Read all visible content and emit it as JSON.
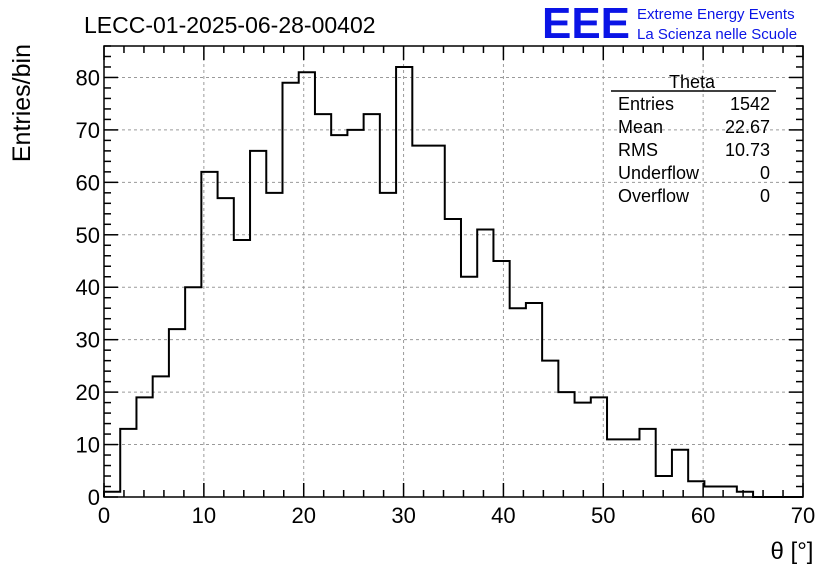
{
  "chart_data": {
    "type": "histogram",
    "title": "LECC-01-2025-06-28-00402",
    "xlabel": "θ [°]",
    "ylabel": "Entries/bin",
    "xlim": [
      0,
      70
    ],
    "ylim": [
      0,
      86
    ],
    "grid": true,
    "x_ticks": [
      0,
      10,
      20,
      30,
      40,
      50,
      60,
      70
    ],
    "y_ticks": [
      0,
      10,
      20,
      30,
      40,
      50,
      60,
      70,
      80
    ],
    "bin_width": 1.625,
    "bin_edges_start": 0,
    "values": [
      1,
      13,
      19,
      23,
      32,
      40,
      62,
      57,
      49,
      66,
      58,
      79,
      81,
      73,
      69,
      70,
      73,
      58,
      82,
      67,
      67,
      53,
      42,
      51,
      45,
      36,
      37,
      26,
      20,
      18,
      19,
      11,
      11,
      13,
      4,
      9,
      3,
      2,
      2,
      1,
      0,
      0,
      0,
      0
    ]
  },
  "stats_box": {
    "title": "Theta",
    "rows": [
      {
        "label": "Entries",
        "value": "1542"
      },
      {
        "label": "Mean",
        "value": "22.67"
      },
      {
        "label": "RMS",
        "value": "10.73"
      },
      {
        "label": "Underflow",
        "value": "0"
      },
      {
        "label": "Overflow",
        "value": "0"
      }
    ]
  },
  "branding": {
    "logo": "EEE",
    "line1": "Extreme Energy Events",
    "line2": "La Scienza nelle Scuole",
    "color": "#0a14e6"
  }
}
